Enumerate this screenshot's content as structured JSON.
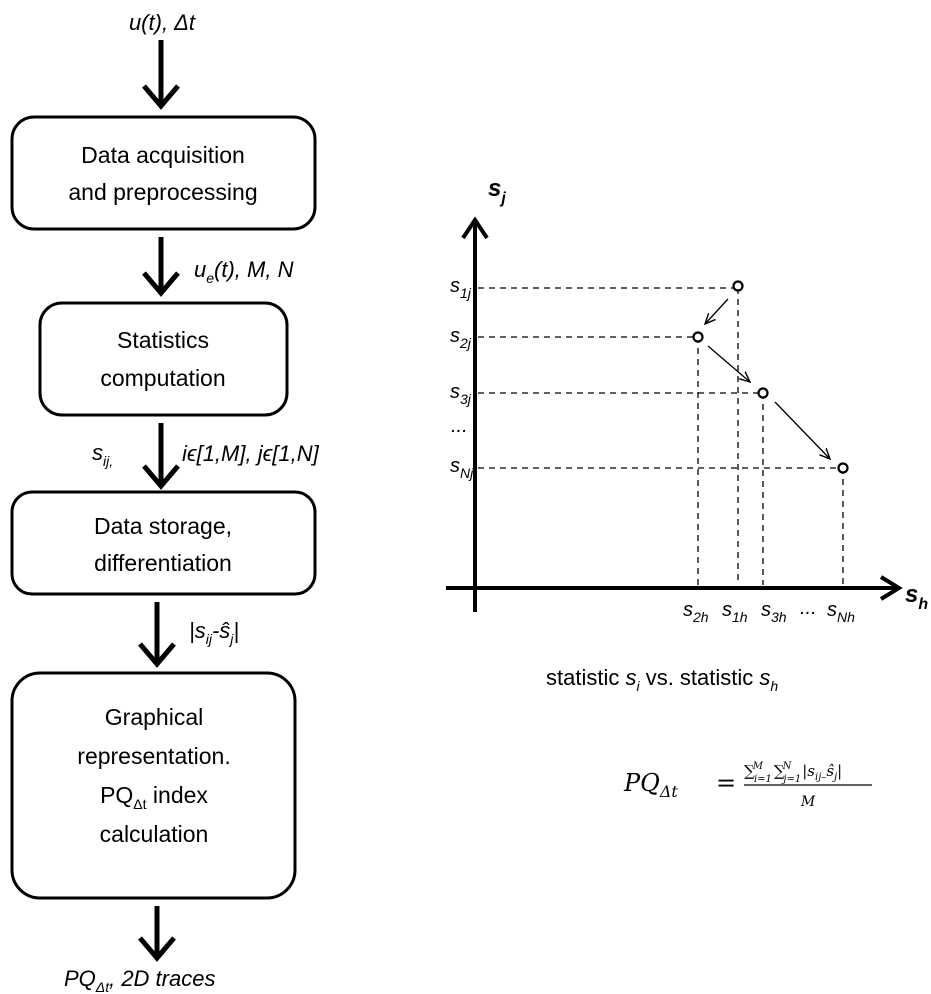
{
  "flowchart": {
    "input_label": "u(t), Δt",
    "box1": {
      "line1": "Data acquisition",
      "line2": "and preprocessing"
    },
    "arrow2_label": {
      "u": "u",
      "sub": "e",
      "rest": "(t), M, N"
    },
    "box2": {
      "line1": "Statistics",
      "line2": "computation"
    },
    "arrow3_label": {
      "s": "s",
      "sub": "ij,",
      "rest": "iϵ[1,M], jϵ[1,N]"
    },
    "box3": {
      "line1": "Data storage,",
      "line2": "differentiation"
    },
    "arrow4_label": {
      "pre": "|s",
      "sub": "ij",
      "mid": "-ŝ",
      "sub2": "j",
      "post": "|"
    },
    "box4": {
      "line1": "Graphical",
      "line2": "representation.",
      "line3_pre": "PQ",
      "line3_sub": "Δt",
      "line3_post": " index",
      "line4": "calculation"
    },
    "output_label": {
      "pre": "PQ",
      "sub": "Δt",
      "post": ", 2D traces"
    }
  },
  "plot": {
    "y_axis_label": {
      "s": "s",
      "sub": "j"
    },
    "x_axis_label": {
      "s": "s",
      "sub": "h"
    },
    "y_ticks": [
      {
        "s": "s",
        "sub": "1j"
      },
      {
        "s": "s",
        "sub": "2j"
      },
      {
        "s": "s",
        "sub": "3j"
      },
      {
        "dots": "..."
      },
      {
        "s": "s",
        "sub": "Nj"
      }
    ],
    "x_ticks": [
      {
        "s": "s",
        "sub": "2h"
      },
      {
        "s": "s",
        "sub": "1h"
      },
      {
        "s": "s",
        "sub": "3h"
      },
      {
        "dots": "..."
      },
      {
        "s": "s",
        "sub": "Nh"
      }
    ],
    "caption": {
      "pre": "statistic ",
      "s1": "s",
      "sub1": "i",
      "mid": " vs. statistic ",
      "s2": "s",
      "sub2": "h"
    }
  },
  "formula": {
    "lhs": "PQ",
    "lhs_sub": "Δt",
    "eq": "=",
    "numerator": "∑",
    "num_sub1": "i=1",
    "num_sup1": "M",
    "num2": "∑",
    "num_sub2": "j=1",
    "num_sup2": "N",
    "abs_pre": "|s",
    "abs_sub": "ij–",
    "abs_hat": "ŝ",
    "abs_sub2": "j",
    "abs_post": "|",
    "denominator": "M"
  },
  "colors": {
    "stroke": "#000000",
    "background": "#ffffff"
  }
}
